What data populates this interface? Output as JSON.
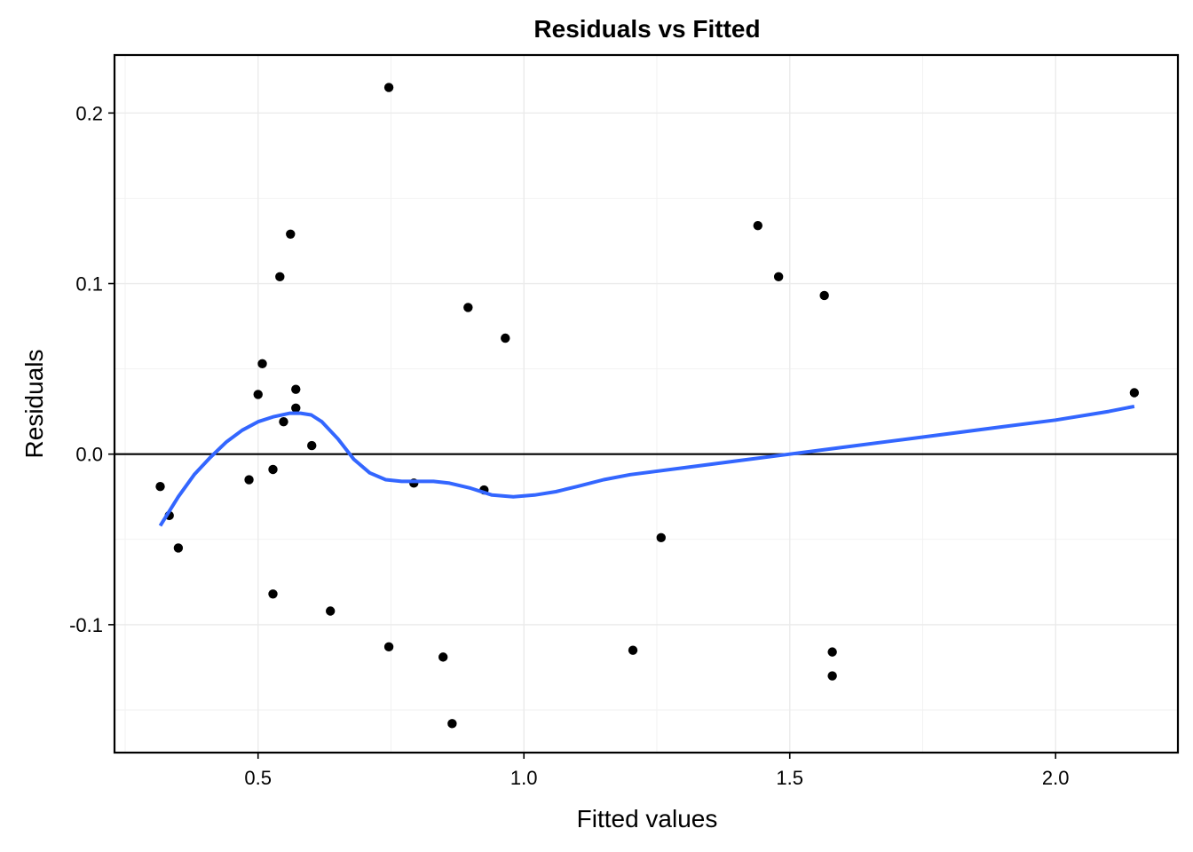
{
  "chart_data": {
    "type": "scatter",
    "title": "Residuals vs Fitted",
    "xlabel": "Fitted values",
    "ylabel": "Residuals",
    "xlim": [
      0.23,
      2.23
    ],
    "ylim": [
      -0.175,
      0.234
    ],
    "x_ticks": [
      0.5,
      1.0,
      1.5,
      2.0
    ],
    "x_tick_labels": [
      "0.5",
      "1.0",
      "1.5",
      "2.0"
    ],
    "y_ticks": [
      -0.1,
      0.0,
      0.1,
      0.2
    ],
    "y_tick_labels": [
      "-0.1",
      "0.0",
      "0.1",
      "0.2"
    ],
    "grid": true,
    "reference_line_y": 0.0,
    "points": [
      {
        "x": 0.316,
        "y": -0.019
      },
      {
        "x": 0.333,
        "y": -0.036
      },
      {
        "x": 0.35,
        "y": -0.055
      },
      {
        "x": 0.483,
        "y": -0.015
      },
      {
        "x": 0.5,
        "y": 0.035
      },
      {
        "x": 0.508,
        "y": 0.053
      },
      {
        "x": 0.528,
        "y": -0.009
      },
      {
        "x": 0.528,
        "y": -0.082
      },
      {
        "x": 0.541,
        "y": 0.104
      },
      {
        "x": 0.548,
        "y": 0.019
      },
      {
        "x": 0.561,
        "y": 0.129
      },
      {
        "x": 0.571,
        "y": 0.027
      },
      {
        "x": 0.571,
        "y": 0.038
      },
      {
        "x": 0.601,
        "y": 0.005
      },
      {
        "x": 0.636,
        "y": -0.092
      },
      {
        "x": 0.746,
        "y": 0.215
      },
      {
        "x": 0.746,
        "y": -0.113
      },
      {
        "x": 0.793,
        "y": -0.017
      },
      {
        "x": 0.848,
        "y": -0.119
      },
      {
        "x": 0.865,
        "y": -0.158
      },
      {
        "x": 0.895,
        "y": 0.086
      },
      {
        "x": 0.925,
        "y": -0.021
      },
      {
        "x": 0.965,
        "y": 0.068
      },
      {
        "x": 1.205,
        "y": -0.115
      },
      {
        "x": 1.258,
        "y": -0.049
      },
      {
        "x": 1.44,
        "y": 0.134
      },
      {
        "x": 1.479,
        "y": 0.104
      },
      {
        "x": 1.565,
        "y": 0.093
      },
      {
        "x": 1.58,
        "y": -0.116
      },
      {
        "x": 1.58,
        "y": -0.13
      },
      {
        "x": 2.148,
        "y": 0.036
      }
    ],
    "smooth_line": {
      "color": "#3366ff",
      "x": [
        0.316,
        0.35,
        0.38,
        0.41,
        0.44,
        0.47,
        0.5,
        0.53,
        0.56,
        0.58,
        0.6,
        0.62,
        0.65,
        0.68,
        0.71,
        0.74,
        0.77,
        0.8,
        0.83,
        0.86,
        0.9,
        0.94,
        0.98,
        1.02,
        1.06,
        1.1,
        1.15,
        1.2,
        1.3,
        1.4,
        1.5,
        1.6,
        1.7,
        1.8,
        1.9,
        2.0,
        2.1,
        2.148
      ],
      "y": [
        -0.042,
        -0.025,
        -0.012,
        -0.002,
        0.007,
        0.014,
        0.019,
        0.022,
        0.024,
        0.024,
        0.023,
        0.019,
        0.009,
        -0.003,
        -0.011,
        -0.015,
        -0.016,
        -0.016,
        -0.016,
        -0.017,
        -0.02,
        -0.024,
        -0.025,
        -0.024,
        -0.022,
        -0.019,
        -0.015,
        -0.012,
        -0.008,
        -0.004,
        0.0,
        0.004,
        0.008,
        0.012,
        0.016,
        0.02,
        0.025,
        0.028
      ]
    }
  }
}
